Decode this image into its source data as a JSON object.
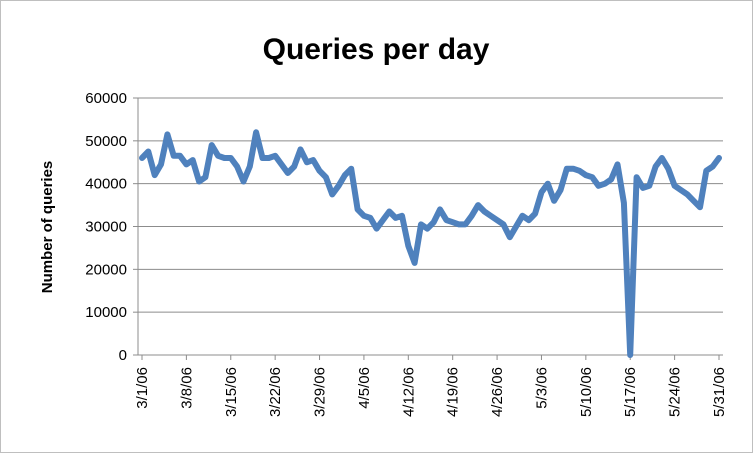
{
  "chart_data": {
    "type": "line",
    "title": "Queries per day",
    "xlabel": "",
    "ylabel": "Number of queries",
    "ylim": [
      0,
      60000
    ],
    "yticks": [
      0,
      10000,
      20000,
      30000,
      40000,
      50000,
      60000
    ],
    "xtick_labels": [
      "3/1/06",
      "3/8/06",
      "3/15/06",
      "3/22/06",
      "3/29/06",
      "4/5/06",
      "4/12/06",
      "4/19/06",
      "4/26/06",
      "5/3/06",
      "5/10/06",
      "5/17/06",
      "5/24/06",
      "5/31/06"
    ],
    "grid": true,
    "legend": "none",
    "line_color": "#4f81bd",
    "series": [
      {
        "values": [
          46000,
          47500,
          42000,
          44500,
          51500,
          46500,
          46500,
          44500,
          45500,
          40500,
          41500,
          49000,
          46500,
          46000,
          46000,
          44000,
          40500,
          44000,
          52000,
          46000,
          46000,
          46500,
          44500,
          42500,
          44000,
          48000,
          45000,
          45500,
          43000,
          41500,
          37500,
          39500,
          42000,
          43500,
          34000,
          32500,
          32000,
          29500,
          31500,
          33500,
          32000,
          32500,
          25500,
          21500,
          30500,
          29500,
          31000,
          34000,
          31500,
          31000,
          30500,
          30500,
          32500,
          35000,
          33500,
          32500,
          31500,
          30500,
          27500,
          30000,
          32500,
          31500,
          33000,
          38000,
          40000,
          36000,
          38500,
          43500,
          43500,
          43000,
          42000,
          41500,
          39500,
          40000,
          41000,
          44500,
          35500,
          0,
          41500,
          39000,
          39500,
          44000,
          46000,
          43500,
          39500,
          38500,
          37500,
          36000,
          34500,
          43000,
          44000,
          46000
        ]
      }
    ]
  }
}
